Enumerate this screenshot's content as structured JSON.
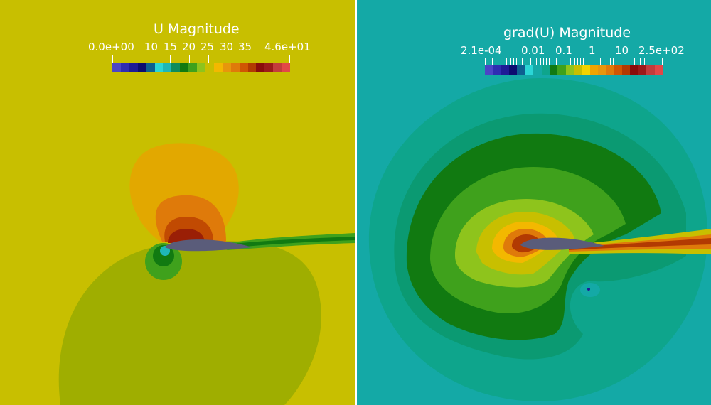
{
  "colors": {
    "left_background": "#c8bf00",
    "right_background": "#14a9a6"
  },
  "left_view": {
    "legend": {
      "title": "U Magnitude",
      "tick_labels": [
        "0.0e+00",
        "10",
        "15",
        "20",
        "25",
        "30",
        "35",
        "4.6e+01"
      ],
      "colors": [
        "#4b45c6",
        "#2f2db2",
        "#1e1b96",
        "#0c0d70",
        "#0d5f91",
        "#2bd6d6",
        "#1fb7b7",
        "#0e8c5c",
        "#117a11",
        "#3fa11c",
        "#8ec41c",
        "#c8bf00",
        "#f3b800",
        "#e7960c",
        "#df7a0a",
        "#d05603",
        "#b23a02",
        "#8a0c0c",
        "#9c1a1a",
        "#c33c3c",
        "#e24848"
      ]
    }
  },
  "right_view": {
    "legend": {
      "title": "grad(U) Magnitude",
      "tick_labels": [
        "2.1e-04",
        "0.01",
        "0.1",
        "1",
        "10",
        "2.5e+02"
      ],
      "colors": [
        "#4b45c6",
        "#2f2db2",
        "#1e1b96",
        "#0c0d70",
        "#0d5f91",
        "#2bd6d6",
        "#14a9a6",
        "#0ea58c",
        "#117a11",
        "#3fa11c",
        "#8ec41c",
        "#c8bf00",
        "#f3d400",
        "#f0a400",
        "#e7960c",
        "#df7a0a",
        "#d05603",
        "#b23a02",
        "#8a0c0c",
        "#9c1a1a",
        "#c33c3c",
        "#e24848"
      ]
    }
  }
}
